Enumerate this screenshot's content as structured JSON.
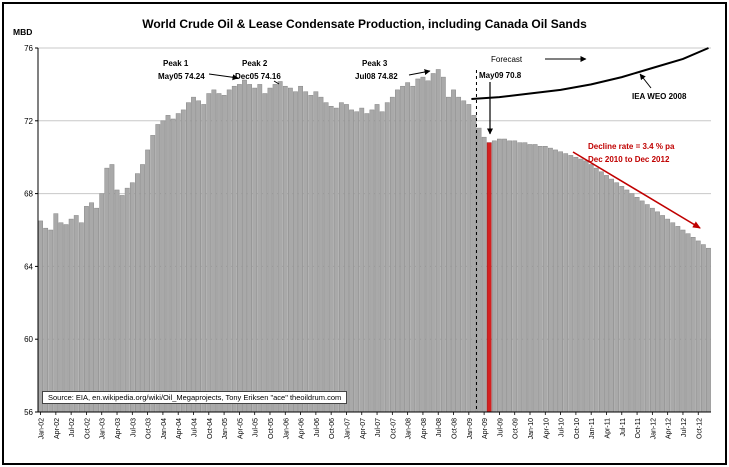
{
  "title": "World Crude Oil & Lease Condensate Production, including Canada Oil Sands",
  "y_axis_label": "MBD",
  "source_text": "Source: EIA, en.wikipedia.org/wiki/Oil_Megaprojects, Tony Eriksen \"ace\" theoildrum.com",
  "annotations": {
    "peak1": {
      "title": "Peak 1",
      "value": "May05 74.24"
    },
    "peak2": {
      "title": "Peak 2",
      "value": "Dec05 74.16"
    },
    "peak3": {
      "title": "Peak 3",
      "value": "Jul08 74.82"
    },
    "forecast": "Forecast",
    "may09": "May09 70.8",
    "iea_label": "IEA WEO 2008",
    "decline_line1": "Decline rate =  3.4 % pa",
    "decline_line2": "Dec 2010 to Dec 2012"
  },
  "colors": {
    "bar": "#a9a9a9",
    "bar_border": "#878787",
    "highlight": "#d42020",
    "decline": "#c00000",
    "iea_line": "#000000",
    "gridline": "#c8c8c8"
  },
  "chart_data": {
    "type": "bar",
    "title": "World Crude Oil & Lease Condensate Production, including Canada Oil Sands",
    "xlabel": "",
    "ylabel": "MBD",
    "ylim": [
      56,
      76
    ],
    "yticks": [
      56,
      60,
      64,
      68,
      72,
      76
    ],
    "grid": "horizontal",
    "x_tick_step": 3,
    "highlight_index": 88,
    "dashed_line_index": 86,
    "categories": [
      "Jan-02",
      "Feb-02",
      "Mar-02",
      "Apr-02",
      "May-02",
      "Jun-02",
      "Jul-02",
      "Aug-02",
      "Sep-02",
      "Oct-02",
      "Nov-02",
      "Dec-02",
      "Jan-03",
      "Feb-03",
      "Mar-03",
      "Apr-03",
      "May-03",
      "Jun-03",
      "Jul-03",
      "Aug-03",
      "Sep-03",
      "Oct-03",
      "Nov-03",
      "Dec-03",
      "Jan-04",
      "Feb-04",
      "Mar-04",
      "Apr-04",
      "May-04",
      "Jun-04",
      "Jul-04",
      "Aug-04",
      "Sep-04",
      "Oct-04",
      "Nov-04",
      "Dec-04",
      "Jan-05",
      "Feb-05",
      "Mar-05",
      "Apr-05",
      "May-05",
      "Jun-05",
      "Jul-05",
      "Aug-05",
      "Sep-05",
      "Oct-05",
      "Nov-05",
      "Dec-05",
      "Jan-06",
      "Feb-06",
      "Mar-06",
      "Apr-06",
      "May-06",
      "Jun-06",
      "Jul-06",
      "Aug-06",
      "Sep-06",
      "Oct-06",
      "Nov-06",
      "Dec-06",
      "Jan-07",
      "Feb-07",
      "Mar-07",
      "Apr-07",
      "May-07",
      "Jun-07",
      "Jul-07",
      "Aug-07",
      "Sep-07",
      "Oct-07",
      "Nov-07",
      "Dec-07",
      "Jan-08",
      "Feb-08",
      "Mar-08",
      "Apr-08",
      "May-08",
      "Jun-08",
      "Jul-08",
      "Aug-08",
      "Sep-08",
      "Oct-08",
      "Nov-08",
      "Dec-08",
      "Jan-09",
      "Feb-09",
      "Mar-09",
      "Apr-09",
      "May-09",
      "Jun-09",
      "Jul-09",
      "Aug-09",
      "Sep-09",
      "Oct-09",
      "Nov-09",
      "Dec-09",
      "Jan-10",
      "Feb-10",
      "Mar-10",
      "Apr-10",
      "May-10",
      "Jun-10",
      "Jul-10",
      "Aug-10",
      "Sep-10",
      "Oct-10",
      "Nov-10",
      "Dec-10",
      "Jan-11",
      "Feb-11",
      "Mar-11",
      "Apr-11",
      "May-11",
      "Jun-11",
      "Jul-11",
      "Aug-11",
      "Sep-11",
      "Oct-11",
      "Nov-11",
      "Dec-11",
      "Jan-12",
      "Feb-12",
      "Mar-12",
      "Apr-12",
      "May-12",
      "Jun-12",
      "Jul-12",
      "Aug-12",
      "Sep-12",
      "Oct-12",
      "Nov-12",
      "Dec-12"
    ],
    "values": [
      66.5,
      66.1,
      66.0,
      66.9,
      66.4,
      66.3,
      66.6,
      66.8,
      66.4,
      67.3,
      67.5,
      67.2,
      68.0,
      69.4,
      69.6,
      68.2,
      67.9,
      68.3,
      68.6,
      69.1,
      69.6,
      70.4,
      71.2,
      71.8,
      72.0,
      72.3,
      72.1,
      72.4,
      72.6,
      73.0,
      73.3,
      73.1,
      72.9,
      73.5,
      73.7,
      73.5,
      73.4,
      73.7,
      73.9,
      74.0,
      74.24,
      74.0,
      73.8,
      74.0,
      73.5,
      73.8,
      74.0,
      74.16,
      73.9,
      73.8,
      73.6,
      73.9,
      73.6,
      73.4,
      73.6,
      73.3,
      73.0,
      72.8,
      72.7,
      73.0,
      72.9,
      72.6,
      72.5,
      72.7,
      72.4,
      72.6,
      72.9,
      72.5,
      73.0,
      73.3,
      73.7,
      73.9,
      74.1,
      73.9,
      74.3,
      74.4,
      74.2,
      74.6,
      74.82,
      74.4,
      73.3,
      73.7,
      73.3,
      73.1,
      72.9,
      72.3,
      71.6,
      71.1,
      70.8,
      70.9,
      71.0,
      71.0,
      70.9,
      70.9,
      70.8,
      70.8,
      70.7,
      70.7,
      70.6,
      70.6,
      70.5,
      70.4,
      70.3,
      70.2,
      70.1,
      70.0,
      69.9,
      69.8,
      69.6,
      69.4,
      69.2,
      69.0,
      68.8,
      68.6,
      68.4,
      68.2,
      68.0,
      67.8,
      67.6,
      67.4,
      67.2,
      67.0,
      66.8,
      66.6,
      66.4,
      66.2,
      66.0,
      65.8,
      65.6,
      65.4,
      65.2,
      65.0
    ],
    "iea_forecast_line": {
      "label": "IEA WEO 2008",
      "x_index": [
        84.5,
        90,
        96,
        102,
        108,
        114,
        120,
        126,
        131
      ],
      "y": [
        73.2,
        73.3,
        73.5,
        73.7,
        74.0,
        74.4,
        74.9,
        75.4,
        76.0
      ]
    }
  }
}
